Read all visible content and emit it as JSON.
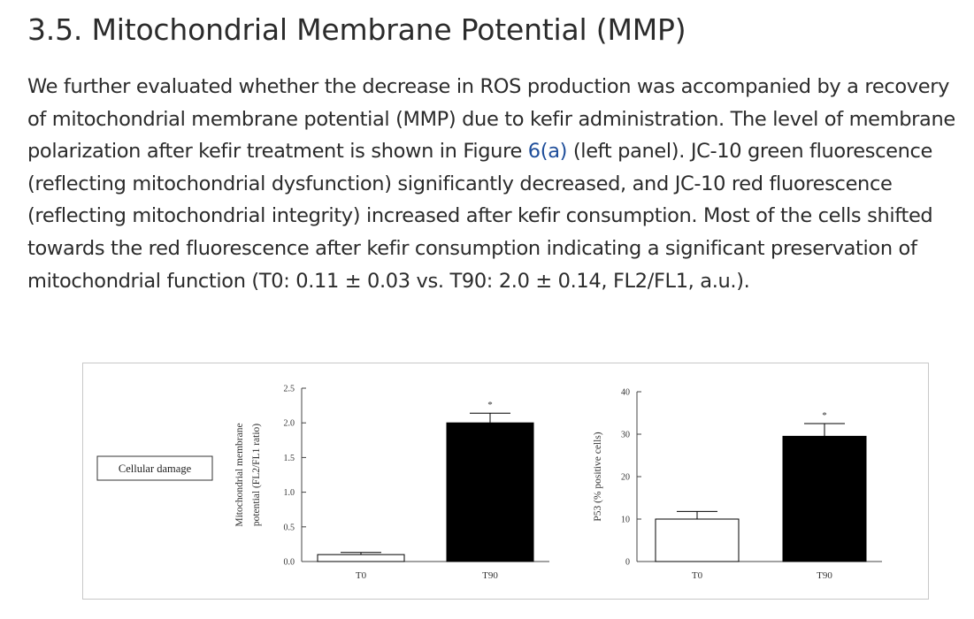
{
  "section": {
    "heading": "3.5. Mitochondrial Membrane Potential (MMP)",
    "paragraph_before_link": "We further evaluated whether the decrease in ROS production was accompanied by a recovery of mitochondrial membrane potential (MMP) due to kefir administration. The level of membrane polarization after kefir treatment is shown in Figure ",
    "figure_link": "6(a)",
    "paragraph_after_link": " (left panel). JC-10 green fluorescence (reflecting mitochondrial dysfunction) significantly decreased, and JC-10 red fluorescence (reflecting mitochondrial integrity) increased after kefir consumption. Most of the cells shifted towards the red fluorescence after kefir consumption indicating a significant preservation of mitochondrial function (T0: 0.11 ± 0.03 vs. T90: 2.0 ± 0.14, FL2/FL1, a.u.)."
  },
  "figure": {
    "box_label": "Cellular damage"
  },
  "chart_data": [
    {
      "type": "bar",
      "categories": [
        "T0",
        "T90"
      ],
      "values": [
        0.1,
        2.0
      ],
      "errors": [
        0.03,
        0.14
      ],
      "significance": [
        "",
        "*"
      ],
      "bar_fills": [
        "#ffffff",
        "#000000"
      ],
      "ylabel": "Mitochondrial membrane potential (FL2/FL1 ratio)",
      "ylabel_lines": [
        "Mitochondrial membrane",
        "potential (FL2/FL1 ratio)"
      ],
      "ylim": [
        0,
        2.5
      ],
      "yticks": [
        "0.0",
        "0.5",
        "1.0",
        "1.5",
        "2.0",
        "2.5"
      ],
      "ytick_values": [
        0,
        0.5,
        1.0,
        1.5,
        2.0,
        2.5
      ]
    },
    {
      "type": "bar",
      "categories": [
        "T0",
        "T90"
      ],
      "values": [
        10,
        29.5
      ],
      "errors": [
        1.8,
        3.0
      ],
      "significance": [
        "",
        "*"
      ],
      "bar_fills": [
        "#ffffff",
        "#000000"
      ],
      "ylabel": "P53 (% positive cells)",
      "ylabel_lines": [
        "P53 (% positive cells)"
      ],
      "ylim": [
        0,
        40
      ],
      "yticks": [
        "0",
        "10",
        "20",
        "30",
        "40"
      ],
      "ytick_values": [
        0,
        10,
        20,
        30,
        40
      ]
    }
  ]
}
